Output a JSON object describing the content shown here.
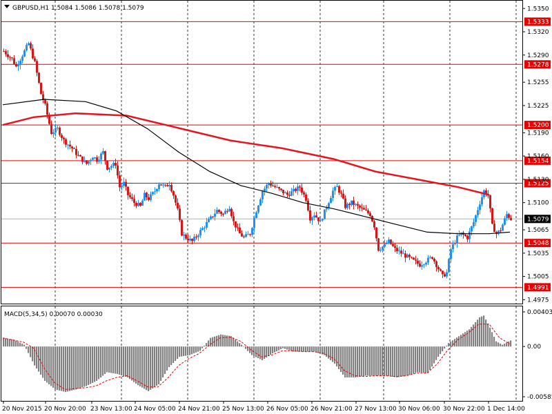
{
  "header": {
    "title": "GBPUSD,H1  1.5084 1.5086 1.5078 1.5079",
    "dropdown_icon": "triangle-down-icon"
  },
  "macd": {
    "label": "MACD(5,34,5) 0.00070 0.00030",
    "axis_labels": [
      "0.00403",
      "0.00",
      "-0.00585"
    ]
  },
  "colors": {
    "background": "#ffffff",
    "bull_candle": "#1e90ff",
    "bear_candle": "#dc1414",
    "ma_fast": "#000000",
    "ma_slow": "#e6141e",
    "level_line": "#e60000",
    "current_price_badge": "#000000",
    "histogram": "#808080",
    "signal": "#e60000"
  },
  "chart_data": {
    "type": "candlestick",
    "symbol": "GBPUSD",
    "timeframe": "H1",
    "ohlc_current": {
      "open": 1.5084,
      "high": 1.5086,
      "low": 1.5078,
      "close": 1.5079
    },
    "y_ticks": [
      "1.5350",
      "1.5320",
      "1.5290",
      "1.5255",
      "1.5225",
      "1.5190",
      "1.5160",
      "1.5130",
      "1.5100",
      "1.5065",
      "1.5035",
      "1.5005",
      "1.4975"
    ],
    "ylim": [
      1.497,
      1.536
    ],
    "x_labels": [
      "20 Nov 2015",
      "20 Nov 20:00",
      "23 Nov 13:00",
      "24 Nov 05:00",
      "24 Nov 21:00",
      "25 Nov 13:00",
      "26 Nov 05:00",
      "26 Nov 21:00",
      "27 Nov 13:00",
      "30 Nov 06:00",
      "30 Nov 22:00",
      "1 Dec 14:00"
    ],
    "levels": [
      "1.5333",
      "1.5278",
      "1.5200",
      "1.5154",
      "1.5125",
      "1.5048",
      "1.4991"
    ],
    "current_price": "1.5079",
    "grid": true,
    "close_path": [
      [
        0,
        1.5295
      ],
      [
        8,
        1.5285
      ],
      [
        12,
        1.5275
      ],
      [
        18,
        1.529
      ],
      [
        24,
        1.5305
      ],
      [
        30,
        1.528
      ],
      [
        36,
        1.524
      ],
      [
        40,
        1.5225
      ],
      [
        46,
        1.519
      ],
      [
        52,
        1.5195
      ],
      [
        58,
        1.518
      ],
      [
        66,
        1.517
      ],
      [
        72,
        1.516
      ],
      [
        80,
        1.515
      ],
      [
        86,
        1.516
      ],
      [
        90,
        1.5155
      ],
      [
        96,
        1.5165
      ],
      [
        100,
        1.5145
      ],
      [
        108,
        1.515
      ],
      [
        112,
        1.512
      ],
      [
        116,
        1.5125
      ],
      [
        120,
        1.511
      ],
      [
        126,
        1.51
      ],
      [
        132,
        1.5095
      ],
      [
        136,
        1.511
      ],
      [
        140,
        1.5105
      ],
      [
        146,
        1.5115
      ],
      [
        150,
        1.5125
      ],
      [
        156,
        1.512
      ],
      [
        160,
        1.5125
      ],
      [
        164,
        1.511
      ],
      [
        168,
        1.509
      ],
      [
        172,
        1.506
      ],
      [
        176,
        1.5055
      ],
      [
        182,
        1.505
      ],
      [
        188,
        1.506
      ],
      [
        194,
        1.507
      ],
      [
        200,
        1.508
      ],
      [
        206,
        1.509
      ],
      [
        212,
        1.5085
      ],
      [
        218,
        1.5095
      ],
      [
        222,
        1.5075
      ],
      [
        228,
        1.506
      ],
      [
        232,
        1.5055
      ],
      [
        238,
        1.506
      ],
      [
        244,
        1.509
      ],
      [
        250,
        1.5115
      ],
      [
        256,
        1.5125
      ],
      [
        262,
        1.512
      ],
      [
        268,
        1.5115
      ],
      [
        274,
        1.511
      ],
      [
        280,
        1.5115
      ],
      [
        286,
        1.512
      ],
      [
        292,
        1.5105
      ],
      [
        296,
        1.508
      ],
      [
        300,
        1.5085
      ],
      [
        306,
        1.5075
      ],
      [
        312,
        1.5095
      ],
      [
        318,
        1.5115
      ],
      [
        322,
        1.512
      ],
      [
        326,
        1.511
      ],
      [
        330,
        1.5095
      ],
      [
        336,
        1.51
      ],
      [
        342,
        1.5095
      ],
      [
        348,
        1.509
      ],
      [
        354,
        1.5085
      ],
      [
        358,
        1.507
      ],
      [
        362,
        1.504
      ],
      [
        368,
        1.5045
      ],
      [
        372,
        1.505
      ],
      [
        378,
        1.504
      ],
      [
        384,
        1.5035
      ],
      [
        390,
        1.503
      ],
      [
        396,
        1.5025
      ],
      [
        402,
        1.502
      ],
      [
        408,
        1.5025
      ],
      [
        414,
        1.503
      ],
      [
        420,
        1.5015
      ],
      [
        424,
        1.5005
      ],
      [
        428,
        1.501
      ],
      [
        432,
        1.504
      ],
      [
        438,
        1.5055
      ],
      [
        442,
        1.506
      ],
      [
        448,
        1.5055
      ],
      [
        454,
        1.5075
      ],
      [
        460,
        1.51
      ],
      [
        464,
        1.5115
      ],
      [
        468,
        1.511
      ],
      [
        472,
        1.507
      ],
      [
        476,
        1.506
      ],
      [
        480,
        1.5065
      ],
      [
        486,
        1.5085
      ],
      [
        490,
        1.5079
      ]
    ],
    "ma_fast": [
      [
        0,
        1.5226
      ],
      [
        40,
        1.5233
      ],
      [
        80,
        1.523
      ],
      [
        110,
        1.5218
      ],
      [
        140,
        1.5195
      ],
      [
        170,
        1.5165
      ],
      [
        200,
        1.514
      ],
      [
        230,
        1.5122
      ],
      [
        260,
        1.5112
      ],
      [
        290,
        1.51
      ],
      [
        320,
        1.5092
      ],
      [
        350,
        1.5082
      ],
      [
        380,
        1.5072
      ],
      [
        410,
        1.5062
      ],
      [
        440,
        1.506
      ],
      [
        470,
        1.506
      ],
      [
        490,
        1.5062
      ]
    ],
    "ma_slow": [
      [
        0,
        1.52
      ],
      [
        30,
        1.521
      ],
      [
        70,
        1.5215
      ],
      [
        120,
        1.5212
      ],
      [
        170,
        1.5196
      ],
      [
        220,
        1.518
      ],
      [
        270,
        1.517
      ],
      [
        320,
        1.5156
      ],
      [
        360,
        1.514
      ],
      [
        400,
        1.513
      ],
      [
        440,
        1.512
      ],
      [
        470,
        1.511
      ]
    ],
    "macd_hist": [
      [
        0,
        0.001
      ],
      [
        10,
        0.0008
      ],
      [
        20,
        0.0002
      ],
      [
        30,
        -0.0022
      ],
      [
        40,
        -0.004
      ],
      [
        50,
        -0.005
      ],
      [
        60,
        -0.0053
      ],
      [
        70,
        -0.005
      ],
      [
        80,
        -0.0046
      ],
      [
        90,
        -0.004
      ],
      [
        100,
        -0.003
      ],
      [
        110,
        -0.0032
      ],
      [
        120,
        -0.0036
      ],
      [
        130,
        -0.0045
      ],
      [
        140,
        -0.0052
      ],
      [
        150,
        -0.0044
      ],
      [
        160,
        -0.0024
      ],
      [
        170,
        -0.0012
      ],
      [
        180,
        -0.001
      ],
      [
        190,
        -0.0005
      ],
      [
        200,
        0.001
      ],
      [
        210,
        0.0014
      ],
      [
        220,
        0.0012
      ],
      [
        230,
        0.0002
      ],
      [
        240,
        -0.001
      ],
      [
        250,
        -0.0016
      ],
      [
        260,
        -0.0008
      ],
      [
        270,
        -0.0002
      ],
      [
        280,
        -0.0006
      ],
      [
        290,
        -0.0006
      ],
      [
        300,
        -0.0006
      ],
      [
        310,
        -0.001
      ],
      [
        320,
        -0.002
      ],
      [
        330,
        -0.0036
      ],
      [
        340,
        -0.0036
      ],
      [
        350,
        -0.0034
      ],
      [
        360,
        -0.0034
      ],
      [
        370,
        -0.0034
      ],
      [
        380,
        -0.0036
      ],
      [
        390,
        -0.0034
      ],
      [
        400,
        -0.003
      ],
      [
        410,
        -0.0031
      ],
      [
        420,
        -0.0012
      ],
      [
        430,
        0.0004
      ],
      [
        440,
        0.0012
      ],
      [
        450,
        0.002
      ],
      [
        460,
        0.0034
      ],
      [
        464,
        0.0036
      ],
      [
        470,
        0.0022
      ],
      [
        476,
        0.0006
      ],
      [
        482,
        0.0002
      ],
      [
        490,
        0.0007
      ]
    ],
    "macd_signal": [
      [
        0,
        0.001
      ],
      [
        20,
        0.0005
      ],
      [
        30,
        -0.0002
      ],
      [
        40,
        -0.0025
      ],
      [
        50,
        -0.0042
      ],
      [
        60,
        -0.005
      ],
      [
        70,
        -0.0049
      ],
      [
        80,
        -0.0048
      ],
      [
        90,
        -0.0046
      ],
      [
        100,
        -0.004
      ],
      [
        110,
        -0.0036
      ],
      [
        120,
        -0.0034
      ],
      [
        130,
        -0.004
      ],
      [
        140,
        -0.0047
      ],
      [
        150,
        -0.0047
      ],
      [
        160,
        -0.0036
      ],
      [
        170,
        -0.0022
      ],
      [
        180,
        -0.0014
      ],
      [
        190,
        -0.0008
      ],
      [
        200,
        0.0002
      ],
      [
        210,
        0.001
      ],
      [
        220,
        0.0011
      ],
      [
        230,
        0.0006
      ],
      [
        240,
        -0.0004
      ],
      [
        250,
        -0.0012
      ],
      [
        260,
        -0.001
      ],
      [
        270,
        -0.0005
      ],
      [
        280,
        -0.0005
      ],
      [
        290,
        -0.0006
      ],
      [
        300,
        -0.0006
      ],
      [
        310,
        -0.0008
      ],
      [
        320,
        -0.0014
      ],
      [
        330,
        -0.0028
      ],
      [
        340,
        -0.0034
      ],
      [
        350,
        -0.0035
      ],
      [
        360,
        -0.0034
      ],
      [
        370,
        -0.0034
      ],
      [
        380,
        -0.0035
      ],
      [
        390,
        -0.0034
      ],
      [
        400,
        -0.0031
      ],
      [
        410,
        -0.0031
      ],
      [
        420,
        -0.002
      ],
      [
        430,
        -0.0004
      ],
      [
        440,
        0.0008
      ],
      [
        450,
        0.0016
      ],
      [
        460,
        0.0026
      ],
      [
        470,
        0.0026
      ],
      [
        480,
        0.001
      ],
      [
        490,
        0.0003
      ]
    ]
  }
}
